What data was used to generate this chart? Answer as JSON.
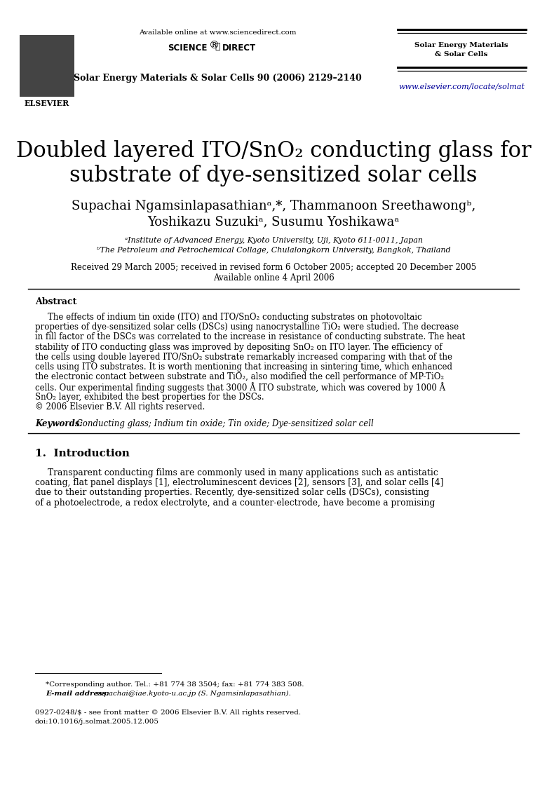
{
  "bg_color": "#ffffff",
  "available_online": "Available online at www.sciencedirect.com",
  "journal_name_header_1": "Solar Energy Materials",
  "journal_name_header_2": "& Solar Cells",
  "journal_citation": "Solar Energy Materials & Solar Cells 90 (2006) 2129–2140",
  "journal_url": "www.elsevier.com/locate/solmat",
  "title_line1": "Doubled layered ITO/SnO₂ conducting glass for",
  "title_line2": "substrate of dye-sensitized solar cells",
  "authors_line1": "Supachai Ngamsinlapasathianᵃ,*, Thammanoon Sreethawongᵇ,",
  "authors_line2": "Yoshikazu Suzukiᵃ, Susumu Yoshikawaᵃ",
  "affil1": "ᵃInstitute of Advanced Energy, Kyoto University, Uji, Kyoto 611-0011, Japan",
  "affil2": "ᵇThe Petroleum and Petrochemical Collage, Chulalongkorn University, Bangkok, Thailand",
  "received": "Received 29 March 2005; received in revised form 6 October 2005; accepted 20 December 2005",
  "available": "Available online 4 April 2006",
  "abstract_heading": "Abstract",
  "abstract_text_lines": [
    "The effects of indium tin oxide (ITO) and ITO/SnO₂ conducting substrates on photovoltaic",
    "properties of dye-sensitized solar cells (DSCs) using nanocrystalline TiO₂ were studied. The decrease",
    "in fill factor of the DSCs was correlated to the increase in resistance of conducting substrate. The heat",
    "stability of ITO conducting glass was improved by depositing SnO₂ on ITO layer. The efficiency of",
    "the cells using double layered ITO/SnO₂ substrate remarkably increased comparing with that of the",
    "cells using ITO substrates. It is worth mentioning that increasing in sintering time, which enhanced",
    "the electronic contact between substrate and TiO₂, also modified the cell performance of MP-TiO₂",
    "cells. Our experimental finding suggests that 3000 Å ITO substrate, which was covered by 1000 Å",
    "SnO₂ layer, exhibited the best properties for the DSCs.",
    "© 2006 Elsevier B.V. All rights reserved."
  ],
  "keywords_label": "Keywords:",
  "keywords_text": " Conducting glass; Indium tin oxide; Tin oxide; Dye-sensitized solar cell",
  "section1_heading": "1.  Introduction",
  "intro_text_lines": [
    "Transparent conducting films are commonly used in many applications such as antistatic",
    "coating, flat panel displays [1], electroluminescent devices [2], sensors [3], and solar cells [4]",
    "due to their outstanding properties. Recently, dye-sensitized solar cells (DSCs), consisting",
    "of a photoelectrode, a redox electrolyte, and a counter-electrode, have become a promising"
  ],
  "footnote_star": "*Corresponding author. Tel.: +81 774 38 3504; fax: +81 774 383 508.",
  "footnote_email_label": "E-mail address:",
  "footnote_email_text": " supachai@iae.kyoto-u.ac.jp (S. Ngamsinlapasathian).",
  "footnote_issn": "0927-0248/$ - see front matter © 2006 Elsevier B.V. All rights reserved.",
  "footnote_doi": "doi:10.1016/j.solmat.2005.12.005"
}
